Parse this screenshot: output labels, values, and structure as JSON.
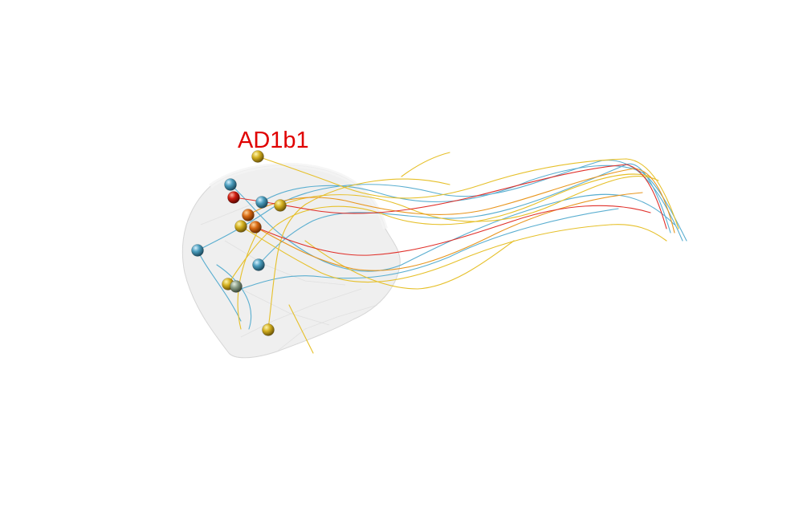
{
  "annotation": {
    "text": "AD1b1",
    "color": "#e00000"
  },
  "palette": {
    "blue": "#5aaed0",
    "yellow": "#e6c02a",
    "orange": "#e8961e",
    "red": "#e0302a",
    "neuropil": "#e4e4e4"
  },
  "somata": [
    {
      "name": "soma-1",
      "color": "gold"
    },
    {
      "name": "soma-2",
      "color": "blue"
    },
    {
      "name": "soma-3",
      "color": "red"
    },
    {
      "name": "soma-4",
      "color": "blue"
    },
    {
      "name": "soma-5",
      "color": "gold"
    },
    {
      "name": "soma-6",
      "color": "orange"
    },
    {
      "name": "soma-7",
      "color": "gold"
    },
    {
      "name": "soma-8",
      "color": "orange"
    },
    {
      "name": "soma-9",
      "color": "blue"
    },
    {
      "name": "soma-10",
      "color": "blue"
    },
    {
      "name": "soma-11",
      "color": "gold"
    },
    {
      "name": "soma-12",
      "color": "grey-green"
    },
    {
      "name": "soma-13",
      "color": "gold"
    }
  ]
}
